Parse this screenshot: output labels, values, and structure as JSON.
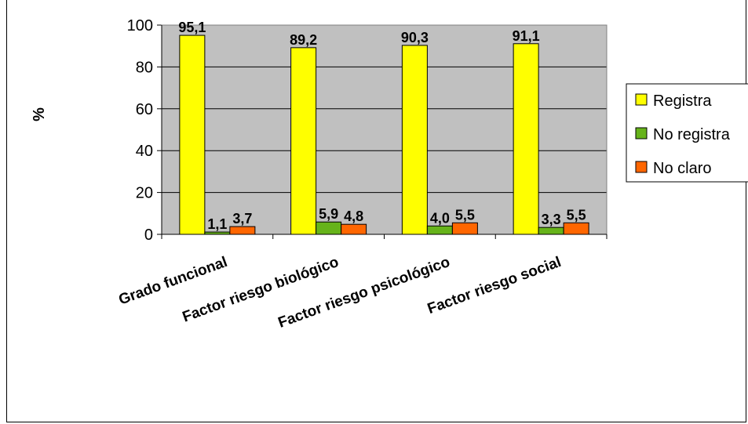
{
  "chart_data": {
    "type": "bar",
    "title": "",
    "xlabel": "",
    "ylabel": "%",
    "ylim": [
      0,
      100
    ],
    "yticks": [
      0,
      20,
      40,
      60,
      80,
      100
    ],
    "grid": true,
    "legend_position": "right",
    "categories": [
      "Grado funcional",
      "Factor riesgo biológico",
      "Factor riesgo psicológico",
      "Factor  riesgo social"
    ],
    "series": [
      {
        "name": "Registra",
        "color": "#ffff00",
        "values": [
          95.1,
          89.2,
          90.3,
          91.1
        ],
        "labels": [
          "95,1",
          "89,2",
          "90,3",
          "91,1"
        ]
      },
      {
        "name": "No registra",
        "color": "#66b31a",
        "values": [
          1.1,
          5.9,
          4.0,
          3.3
        ],
        "labels": [
          "1,1",
          "5,9",
          "4,0",
          "3,3"
        ]
      },
      {
        "name": "No claro",
        "color": "#ff6600",
        "values": [
          3.7,
          4.8,
          5.5,
          5.5
        ],
        "labels": [
          "3,7",
          "4,8",
          "5,5",
          "5,5"
        ]
      }
    ],
    "plot_background": "#c0c0c0"
  }
}
